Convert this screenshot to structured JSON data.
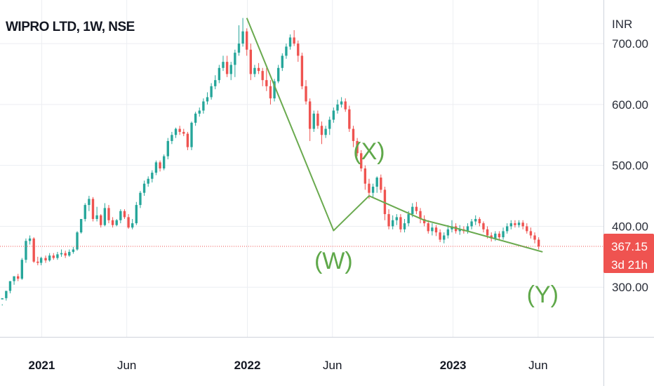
{
  "header": {
    "title": "WIPRO LTD, 1W, NSE"
  },
  "axis": {
    "currency": "INR"
  },
  "colors": {
    "up": "#26a69a",
    "down": "#ef5350",
    "wave": "#6aaa4f",
    "price_label_bg": "#ef5350",
    "price_line": "#ef5350"
  },
  "current_price": {
    "value": "367.15",
    "countdown": "3d 21h"
  },
  "chart_data": {
    "type": "candlestick",
    "title": "WIPRO LTD, 1W, NSE",
    "xlabel": "",
    "ylabel": "",
    "ylim": [
      230,
      760
    ],
    "x_range": [
      "2020-10-19",
      "2023-09-25"
    ],
    "y_ticks": [
      {
        "value": 300,
        "label": "300.00"
      },
      {
        "value": 400,
        "label": "400.00"
      },
      {
        "value": 500,
        "label": "500.00"
      },
      {
        "value": 600,
        "label": "600.00"
      },
      {
        "value": 700,
        "label": "700.00"
      }
    ],
    "x_ticks": [
      {
        "date": "2021-01-01",
        "label": "2021",
        "major": true
      },
      {
        "date": "2021-06-01",
        "label": "Jun",
        "major": false
      },
      {
        "date": "2022-01-01",
        "label": "2022",
        "major": true
      },
      {
        "date": "2022-06-01",
        "label": "Jun",
        "major": false
      },
      {
        "date": "2023-01-01",
        "label": "2023",
        "major": true
      },
      {
        "date": "2023-06-01",
        "label": "Jun",
        "major": false
      }
    ],
    "grid": true,
    "candles": [
      [
        "2020-10-23",
        280,
        282,
        272,
        270
      ],
      [
        "2020-10-30",
        282,
        294,
        294,
        278
      ],
      [
        "2020-11-06",
        294,
        310,
        310,
        290
      ],
      [
        "2020-11-13",
        310,
        318,
        318,
        304
      ],
      [
        "2020-11-20",
        318,
        314,
        322,
        310
      ],
      [
        "2020-11-27",
        314,
        345,
        348,
        312
      ],
      [
        "2020-12-04",
        345,
        376,
        380,
        340
      ],
      [
        "2020-12-11",
        376,
        380,
        385,
        370
      ],
      [
        "2020-12-18",
        380,
        342,
        382,
        340
      ],
      [
        "2020-12-25",
        342,
        340,
        350,
        336
      ],
      [
        "2020-12-31",
        340,
        348,
        350,
        336
      ],
      [
        "2021-01-08",
        348,
        344,
        352,
        340
      ],
      [
        "2021-01-15",
        344,
        352,
        356,
        342
      ],
      [
        "2021-01-22",
        352,
        348,
        356,
        345
      ],
      [
        "2021-01-29",
        348,
        354,
        358,
        345
      ],
      [
        "2021-02-05",
        354,
        356,
        362,
        350
      ],
      [
        "2021-02-12",
        356,
        352,
        360,
        348
      ],
      [
        "2021-02-19",
        352,
        358,
        362,
        350
      ],
      [
        "2021-02-26",
        358,
        362,
        366,
        355
      ],
      [
        "2021-03-05",
        362,
        390,
        392,
        360
      ],
      [
        "2021-03-12",
        390,
        412,
        412,
        388
      ],
      [
        "2021-03-19",
        412,
        435,
        438,
        408
      ],
      [
        "2021-03-26",
        435,
        445,
        450,
        425
      ],
      [
        "2021-04-02",
        445,
        412,
        448,
        408
      ],
      [
        "2021-04-09",
        412,
        418,
        432,
        408
      ],
      [
        "2021-04-16",
        418,
        402,
        420,
        398
      ],
      [
        "2021-04-23",
        402,
        430,
        438,
        400
      ],
      [
        "2021-04-30",
        430,
        410,
        435,
        405
      ],
      [
        "2021-05-07",
        410,
        402,
        415,
        398
      ],
      [
        "2021-05-14",
        402,
        410,
        412,
        400
      ],
      [
        "2021-05-21",
        410,
        425,
        428,
        405
      ],
      [
        "2021-05-28",
        425,
        415,
        428,
        412
      ],
      [
        "2021-06-04",
        415,
        398,
        420,
        396
      ],
      [
        "2021-06-11",
        398,
        405,
        412,
        395
      ],
      [
        "2021-06-18",
        405,
        435,
        440,
        402
      ],
      [
        "2021-06-25",
        435,
        455,
        458,
        430
      ],
      [
        "2021-07-02",
        455,
        470,
        475,
        450
      ],
      [
        "2021-07-09",
        470,
        478,
        482,
        465
      ],
      [
        "2021-07-16",
        478,
        488,
        492,
        472
      ],
      [
        "2021-07-23",
        488,
        505,
        508,
        484
      ],
      [
        "2021-07-30",
        505,
        495,
        508,
        490
      ],
      [
        "2021-08-06",
        495,
        515,
        518,
        492
      ],
      [
        "2021-08-13",
        515,
        540,
        545,
        510
      ],
      [
        "2021-08-20",
        540,
        550,
        555,
        535
      ],
      [
        "2021-08-27",
        550,
        560,
        562,
        545
      ],
      [
        "2021-09-03",
        560,
        555,
        565,
        550
      ],
      [
        "2021-09-10",
        555,
        552,
        560,
        548
      ],
      [
        "2021-09-17",
        552,
        530,
        555,
        525
      ],
      [
        "2021-09-24",
        530,
        570,
        572,
        525
      ],
      [
        "2021-10-01",
        570,
        585,
        588,
        565
      ],
      [
        "2021-10-08",
        585,
        590,
        595,
        580
      ],
      [
        "2021-10-15",
        590,
        605,
        610,
        585
      ],
      [
        "2021-10-22",
        605,
        612,
        620,
        600
      ],
      [
        "2021-10-29",
        612,
        630,
        635,
        608
      ],
      [
        "2021-11-05",
        630,
        640,
        648,
        625
      ],
      [
        "2021-11-12",
        640,
        660,
        665,
        635
      ],
      [
        "2021-11-19",
        660,
        670,
        680,
        655
      ],
      [
        "2021-11-26",
        670,
        650,
        680,
        645
      ],
      [
        "2021-12-03",
        650,
        665,
        670,
        640
      ],
      [
        "2021-12-10",
        665,
        685,
        690,
        645
      ],
      [
        "2021-12-17",
        685,
        700,
        730,
        680
      ],
      [
        "2021-12-24",
        700,
        720,
        742,
        695
      ],
      [
        "2021-12-31",
        720,
        690,
        725,
        680
      ],
      [
        "2022-01-07",
        690,
        650,
        700,
        640
      ],
      [
        "2022-01-14",
        650,
        660,
        665,
        645
      ],
      [
        "2022-01-21",
        660,
        655,
        668,
        650
      ],
      [
        "2022-01-28",
        655,
        640,
        660,
        630
      ],
      [
        "2022-02-04",
        640,
        630,
        660,
        622
      ],
      [
        "2022-02-11",
        630,
        610,
        640,
        600
      ],
      [
        "2022-02-18",
        610,
        638,
        642,
        605
      ],
      [
        "2022-02-25",
        638,
        660,
        665,
        635
      ],
      [
        "2022-03-04",
        660,
        680,
        684,
        655
      ],
      [
        "2022-03-11",
        680,
        695,
        700,
        675
      ],
      [
        "2022-03-18",
        695,
        710,
        715,
        690
      ],
      [
        "2022-03-25",
        710,
        700,
        722,
        696
      ],
      [
        "2022-04-01",
        700,
        680,
        705,
        670
      ],
      [
        "2022-04-08",
        680,
        630,
        685,
        625
      ],
      [
        "2022-04-15",
        630,
        605,
        640,
        600
      ],
      [
        "2022-04-22",
        605,
        560,
        610,
        540
      ],
      [
        "2022-04-29",
        560,
        585,
        590,
        555
      ],
      [
        "2022-05-06",
        585,
        565,
        590,
        560
      ],
      [
        "2022-05-13",
        565,
        550,
        572,
        535
      ],
      [
        "2022-05-20",
        550,
        560,
        565,
        545
      ],
      [
        "2022-05-27",
        560,
        575,
        580,
        550
      ],
      [
        "2022-06-03",
        575,
        590,
        595,
        570
      ],
      [
        "2022-06-10",
        590,
        600,
        608,
        585
      ],
      [
        "2022-06-17",
        600,
        605,
        612,
        595
      ],
      [
        "2022-06-24",
        605,
        592,
        610,
        588
      ],
      [
        "2022-07-01",
        592,
        560,
        598,
        555
      ],
      [
        "2022-07-08",
        560,
        540,
        565,
        530
      ],
      [
        "2022-07-15",
        540,
        520,
        545,
        515
      ],
      [
        "2022-07-22",
        520,
        495,
        525,
        490
      ],
      [
        "2022-07-29",
        495,
        470,
        500,
        460
      ],
      [
        "2022-08-05",
        470,
        455,
        478,
        445
      ],
      [
        "2022-08-12",
        455,
        465,
        470,
        448
      ],
      [
        "2022-08-19",
        465,
        480,
        482,
        455
      ],
      [
        "2022-08-26",
        480,
        460,
        485,
        455
      ],
      [
        "2022-09-02",
        460,
        420,
        465,
        410
      ],
      [
        "2022-09-09",
        420,
        400,
        428,
        395
      ],
      [
        "2022-09-16",
        400,
        410,
        418,
        395
      ],
      [
        "2022-09-23",
        410,
        415,
        420,
        402
      ],
      [
        "2022-09-30",
        415,
        395,
        420,
        390
      ],
      [
        "2022-10-07",
        395,
        405,
        412,
        390
      ],
      [
        "2022-10-14",
        405,
        420,
        425,
        400
      ],
      [
        "2022-10-21",
        420,
        432,
        438,
        415
      ],
      [
        "2022-10-28",
        432,
        425,
        440,
        420
      ],
      [
        "2022-11-04",
        425,
        412,
        430,
        405
      ],
      [
        "2022-11-11",
        412,
        405,
        418,
        400
      ],
      [
        "2022-11-18",
        405,
        392,
        410,
        388
      ],
      [
        "2022-11-25",
        392,
        398,
        405,
        385
      ],
      [
        "2022-12-02",
        398,
        390,
        402,
        384
      ],
      [
        "2022-12-09",
        390,
        378,
        395,
        374
      ],
      [
        "2022-12-16",
        378,
        385,
        390,
        372
      ],
      [
        "2022-12-23",
        385,
        395,
        402,
        380
      ],
      [
        "2022-12-30",
        395,
        400,
        410,
        390
      ],
      [
        "2023-01-06",
        400,
        392,
        405,
        388
      ],
      [
        "2023-01-13",
        392,
        395,
        402,
        386
      ],
      [
        "2023-01-20",
        395,
        392,
        400,
        388
      ],
      [
        "2023-01-27",
        392,
        400,
        405,
        388
      ],
      [
        "2023-02-03",
        400,
        408,
        412,
        395
      ],
      [
        "2023-02-10",
        408,
        412,
        418,
        402
      ],
      [
        "2023-02-17",
        412,
        405,
        415,
        400
      ],
      [
        "2023-02-24",
        405,
        395,
        408,
        390
      ],
      [
        "2023-03-03",
        395,
        385,
        400,
        380
      ],
      [
        "2023-03-10",
        385,
        380,
        390,
        375
      ],
      [
        "2023-03-17",
        380,
        388,
        392,
        376
      ],
      [
        "2023-03-24",
        388,
        382,
        392,
        378
      ],
      [
        "2023-03-31",
        382,
        392,
        398,
        378
      ],
      [
        "2023-04-07",
        392,
        400,
        405,
        388
      ],
      [
        "2023-04-14",
        400,
        405,
        410,
        395
      ],
      [
        "2023-04-21",
        405,
        402,
        410,
        398
      ],
      [
        "2023-04-28",
        402,
        406,
        410,
        398
      ],
      [
        "2023-05-05",
        406,
        400,
        410,
        395
      ],
      [
        "2023-05-12",
        400,
        392,
        405,
        388
      ],
      [
        "2023-05-19",
        392,
        385,
        398,
        380
      ],
      [
        "2023-05-26",
        385,
        378,
        390,
        372
      ],
      [
        "2023-06-02",
        378,
        367,
        382,
        362
      ]
    ],
    "current_price": 367.15,
    "wave_lines": [
      [
        "2021-12-31",
        742
      ],
      [
        "2022-06-03",
        393
      ],
      [
        "2022-08-05",
        450
      ],
      [
        "2022-11-11",
        410
      ],
      [
        "2023-01-27",
        392
      ],
      [
        "2023-06-09",
        358
      ]
    ],
    "annotations": [
      {
        "text": "(W)",
        "date": "2022-06-03",
        "value": 330
      },
      {
        "text": "(X)",
        "date": "2022-08-05",
        "value": 510
      },
      {
        "text": "(Y)",
        "date": "2023-06-09",
        "value": 275
      }
    ]
  }
}
